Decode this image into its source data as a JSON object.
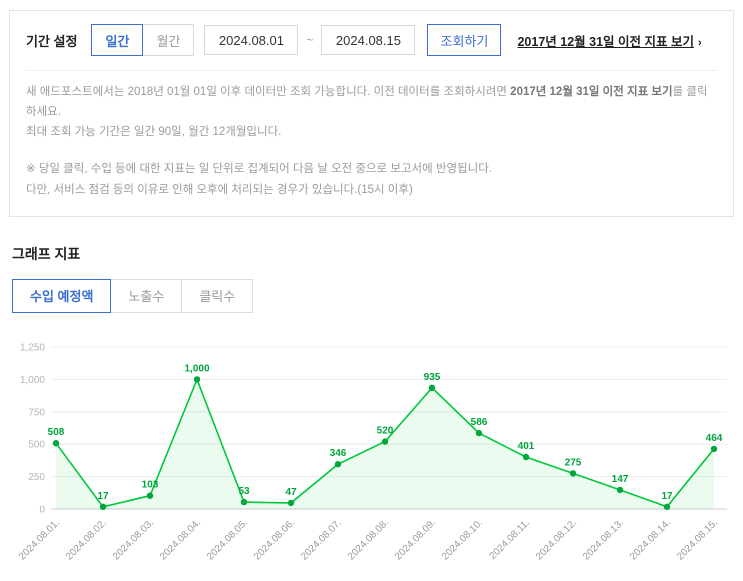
{
  "period": {
    "label": "기간 설정",
    "daily_label": "일간",
    "monthly_label": "월간",
    "start_date": "2024.08.01",
    "separator": "~",
    "end_date": "2024.08.15",
    "search_button": "조회하기",
    "legacy_link": "2017년 12월 31일 이전 지표 보기",
    "legacy_arrow": "›"
  },
  "notice": {
    "line1_pre": "새 애드포스트에서는 2018년 01월 01일 이후 데이터만 조회 가능합니다. 이전 데이터를 조회하시려면 ",
    "line1_bold": "2017년 12월 31일 이전 지표 보기",
    "line1_post": "를 클릭하세요.",
    "line2": "최대 조회 가능 기간은 일간 90일, 월간 12개월입니다.",
    "line3": "※ 당일 클릭, 수입 등에 대한 지표는 일 단위로 집계되어 다음 날 오전 중으로 보고서에 반영됩니다.",
    "line4": "다만, 서비스 점검 등의 이유로 인해 오후에 처리되는 경우가 있습니다.(15시 이후)"
  },
  "graph": {
    "title": "그래프 지표",
    "tabs": [
      {
        "label": "수입 예정액",
        "active": true
      },
      {
        "label": "노출수",
        "active": false
      },
      {
        "label": "클릭수",
        "active": false
      }
    ]
  },
  "colors": {
    "accent_blue": "#3B6FD1",
    "line_green": "#00C73C",
    "dot_green": "#00A83A",
    "label_green": "#00A33C"
  },
  "chart_data": {
    "type": "area",
    "series_name": "수입 예정액",
    "x": [
      "2024.08.01.",
      "2024.08.02.",
      "2024.08.03.",
      "2024.08.04.",
      "2024.08.05.",
      "2024.08.06.",
      "2024.08.07.",
      "2024.08.08.",
      "2024.08.09.",
      "2024.08.10.",
      "2024.08.11.",
      "2024.08.12.",
      "2024.08.13.",
      "2024.08.14.",
      "2024.08.15."
    ],
    "values": [
      508,
      17,
      103,
      1000,
      53,
      47,
      346,
      520,
      935,
      586,
      401,
      275,
      147,
      17,
      464
    ],
    "point_labels": [
      "508",
      "17",
      "103",
      "1,000",
      "53",
      "47",
      "346",
      "520",
      "935",
      "586",
      "401",
      "275",
      "147",
      "17",
      "464"
    ],
    "ylim": [
      0,
      1250
    ],
    "yticks": [
      0,
      250,
      500,
      750,
      1000,
      1250
    ],
    "ytick_labels": [
      "0",
      "250",
      "500",
      "750",
      "1,000",
      "1,250"
    ],
    "grid": true,
    "legend": false,
    "line_color": "#00C73C",
    "dot_color": "#00A83A",
    "label_color": "#00A33C"
  }
}
